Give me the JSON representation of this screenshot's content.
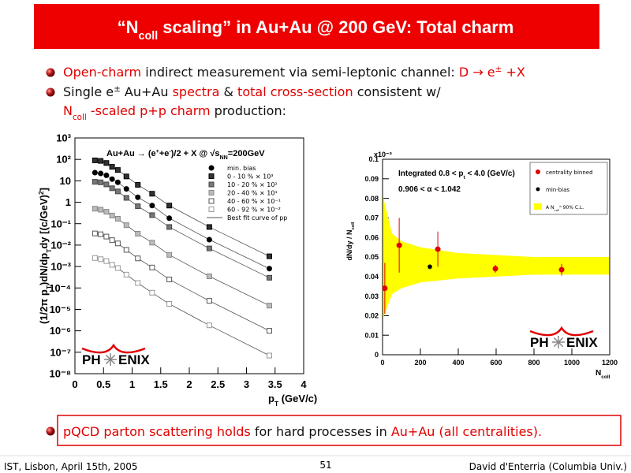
{
  "header": {
    "title": [
      {
        "text": "“N"
      },
      {
        "text": "coll",
        "sub": true
      },
      {
        "text": " scaling” in Au+Au @ 200 GeV: Total charm"
      }
    ]
  },
  "bullets": [
    {
      "lines": [
        [
          {
            "text": "Open-charm",
            "red": true
          },
          {
            "text": " indirect measurement via semi-leptonic channel: "
          },
          {
            "text": "D → e",
            "red": true
          },
          {
            "text": "±",
            "red": true,
            "sup": true
          },
          {
            "text": " +X",
            "red": true
          }
        ]
      ]
    },
    {
      "lines": [
        [
          {
            "text": "Single e"
          },
          {
            "text": "±",
            "sup": true
          },
          {
            "text": " Au+Au "
          },
          {
            "text": "spectra",
            "red": true
          },
          {
            "text": " & "
          },
          {
            "text": "total cross-section",
            "red": true
          },
          {
            "text": " consistent w/"
          }
        ],
        [
          {
            "text": "N",
            "red": true
          },
          {
            "text": "coll",
            "red": true,
            "sub": true
          },
          {
            "text": " -scaled p+p charm",
            "red": true
          },
          {
            "text": " production:"
          }
        ]
      ]
    }
  ],
  "conclusion": {
    "lines": [
      [
        {
          "text": "pQCD parton scattering holds",
          "red": true
        },
        {
          "text": " for hard processes in "
        },
        {
          "text": "Au+Au (all centralities).",
          "red": true
        }
      ]
    ]
  },
  "footer": {
    "left": "IST, Lisbon, April 15th, 2005",
    "center": "51",
    "right": "David d'Enterria (Columbia Univ.)"
  },
  "charts": [
    {
      "type": "scatter",
      "log_y": true,
      "title": [
        {
          "text": "Au+Au → (e"
        },
        {
          "text": "+",
          "sup": true
        },
        {
          "text": "+e"
        },
        {
          "text": "-",
          "sup": true
        },
        {
          "text": ")/2 + X @ √s"
        },
        {
          "text": "NN",
          "sub": true
        },
        {
          "text": "=200GeV"
        }
      ],
      "ylabel": [
        {
          "text": "(1/2π p"
        },
        {
          "text": "T",
          "sub": true
        },
        {
          "text": ")dN/dp"
        },
        {
          "text": "T",
          "sub": true
        },
        {
          "text": "dy [(c/GeV)"
        },
        {
          "text": "2",
          "sup": true
        },
        {
          "text": "]"
        }
      ],
      "xlabel": [
        {
          "text": "p"
        },
        {
          "text": "T",
          "sub": true
        },
        {
          "text": " (GeV/c)"
        }
      ],
      "xlim": [
        0,
        4
      ],
      "xticks": [
        0,
        0.5,
        1,
        1.5,
        2,
        2.5,
        3,
        3.5,
        4
      ],
      "ylim": [
        1e-08,
        1000
      ],
      "yticks": [
        {
          "value": 1e-08,
          "label": "10⁻⁸"
        },
        {
          "value": 1e-07,
          "label": "10⁻⁷"
        },
        {
          "value": 1e-06,
          "label": "10⁻⁶"
        },
        {
          "value": 1e-05,
          "label": "10⁻⁵"
        },
        {
          "value": 0.0001,
          "label": "10⁻⁴"
        },
        {
          "value": 0.001,
          "label": "10⁻³"
        },
        {
          "value": 0.01,
          "label": "10⁻²"
        },
        {
          "value": 0.1,
          "label": "10⁻¹"
        },
        1,
        10,
        {
          "value": 100,
          "label": "10²"
        },
        {
          "value": 1000,
          "label": "10³"
        }
      ],
      "x": [
        0.35,
        0.45,
        0.55,
        0.65,
        0.75,
        0.9,
        1.1,
        1.35,
        1.65,
        2.35,
        3.4
      ],
      "series": [
        {
          "name": "min. bias",
          "marker": "circle",
          "color": "#000000",
          "stroke": "#000000",
          "values": [
            24,
            22,
            18,
            12,
            8.5,
            4.2,
            1.7,
            0.7,
            0.18,
            0.018,
            0.0008
          ]
        },
        {
          "name": "0 - 10 % × 10³",
          "marker": "square",
          "color": "#333333",
          "stroke": "#000000",
          "values": [
            90,
            85,
            68,
            45,
            32,
            16,
            6.5,
            2.5,
            0.7,
            0.07,
            0.003
          ]
        },
        {
          "name": "10 - 20 % × 10²",
          "marker": "square",
          "color": "#777777",
          "stroke": "#444444",
          "values": [
            9,
            8.5,
            6.8,
            4.5,
            3.2,
            1.6,
            0.65,
            0.25,
            0.07,
            0.007,
            0.0003
          ]
        },
        {
          "name": "20 - 40 % × 10¹",
          "marker": "square",
          "color": "#bbbbbb",
          "stroke": "#888888",
          "values": [
            0.5,
            0.45,
            0.36,
            0.24,
            0.17,
            0.085,
            0.034,
            0.013,
            0.0035,
            0.00035,
            1.5e-05
          ]
        },
        {
          "name": "40 - 60 % × 10⁻¹",
          "marker": "square",
          "color": "#ffffff",
          "stroke": "#555555",
          "values": [
            0.035,
            0.032,
            0.025,
            0.017,
            0.012,
            0.006,
            0.0024,
            0.0009,
            0.00025,
            2.5e-05,
            1e-06
          ]
        },
        {
          "name": "60 - 92 % × 10⁻²",
          "marker": "square",
          "color": "#ffffff",
          "stroke": "#999999",
          "values": [
            0.0025,
            0.0022,
            0.0018,
            0.0012,
            0.00085,
            0.00042,
            0.00017,
            6e-05,
            1.8e-05,
            1.8e-06,
            7e-08
          ]
        }
      ],
      "fit_name": "Best fit curve of pp",
      "logo": [
        "PH",
        "ENIX"
      ]
    },
    {
      "type": "scatter",
      "ylabel": [
        {
          "text": "dN/dy / N"
        },
        {
          "text": "coll",
          "sub": true
        }
      ],
      "y_multiplier": "x10⁻³",
      "xlabel": [
        {
          "text": "N"
        },
        {
          "text": "coll",
          "sub": true
        }
      ],
      "xlim": [
        0,
        1200
      ],
      "xticks": [
        0,
        200,
        400,
        600,
        800,
        1000,
        1200
      ],
      "ylim": [
        0,
        0.1
      ],
      "yticks": [
        0,
        0.01,
        0.02,
        0.03,
        0.04,
        0.05,
        0.06,
        0.07,
        0.08,
        0.09,
        0.1
      ],
      "annotations": [
        [
          {
            "text": "Integrated 0.8 < p"
          },
          {
            "text": "t",
            "sub": true
          },
          {
            "text": " < 4.0 (GeV/c)"
          }
        ],
        [
          {
            "text": "0.906 < α < 1.042"
          }
        ]
      ],
      "band": {
        "name": [
          {
            "text": "A N"
          },
          {
            "text": "coll",
            "sub": true
          },
          {
            "text": "α",
            "sup": true
          },
          {
            "text": " 90% C.L."
          }
        ],
        "color": "#ffff00",
        "x": [
          0,
          50,
          100,
          200,
          400,
          600,
          800,
          1000,
          1200
        ],
        "lower": [
          0.018,
          0.031,
          0.034,
          0.037,
          0.039,
          0.04,
          0.041,
          0.041,
          0.041
        ],
        "upper": [
          0.082,
          0.062,
          0.058,
          0.055,
          0.052,
          0.051,
          0.05,
          0.05,
          0.05
        ]
      },
      "series": [
        {
          "name": "centrality binned",
          "marker": "circle",
          "color": "#e00000",
          "x": [
            12,
            88,
            292,
            596,
            946
          ],
          "values": [
            0.034,
            0.056,
            0.054,
            0.044,
            0.0435
          ],
          "errors": [
            0.013,
            0.014,
            0.009,
            0.002,
            0.003
          ]
        },
        {
          "name": "min-bias",
          "marker": "star",
          "color": "#000000",
          "x": [
            250
          ],
          "values": [
            0.045
          ]
        }
      ],
      "logo": [
        "PH",
        "ENIX"
      ]
    }
  ]
}
